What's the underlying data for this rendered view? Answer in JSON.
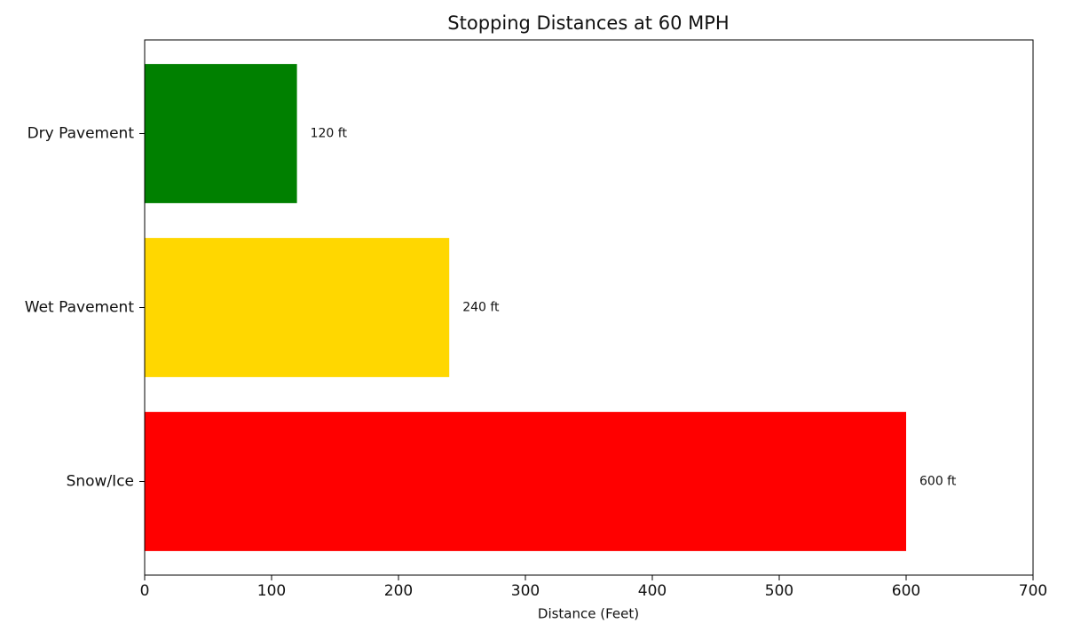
{
  "chart_data": {
    "type": "bar",
    "orientation": "horizontal",
    "title": "Stopping Distances at 60 MPH",
    "x_label": "Distance (Feet)",
    "categories": [
      "Dry Pavement",
      "Wet Pavement",
      "Snow/Ice"
    ],
    "values": [
      120,
      240,
      600
    ],
    "value_labels": [
      "120 ft",
      "240 ft",
      "600 ft"
    ],
    "colors": [
      "#008000",
      "#ffd700",
      "#ff0000"
    ],
    "xlim": [
      0,
      700
    ],
    "xticks": [
      0,
      100,
      200,
      300,
      400,
      500,
      600,
      700
    ],
    "grid": false
  }
}
